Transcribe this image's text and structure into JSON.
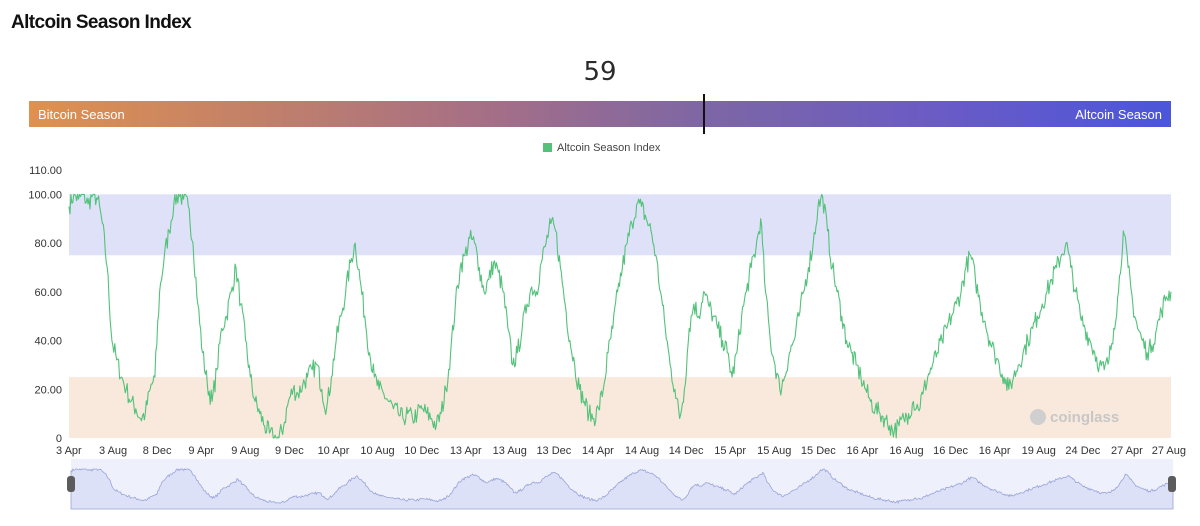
{
  "page": {
    "title": "Altcoin Season Index"
  },
  "gauge": {
    "value": "59",
    "left_label": "Bitcoin Season",
    "right_label": "Altcoin Season",
    "colors": {
      "start": "#e0914d",
      "end": "#4b56da"
    }
  },
  "watermark": {
    "text": "coinglass"
  },
  "chart_data": {
    "type": "line",
    "title": "",
    "legend": [
      {
        "name": "Altcoin Season Index",
        "color": "#52c27a"
      }
    ],
    "legend_position": "top-center",
    "ylim": [
      0,
      110
    ],
    "y_ticks": [
      "0",
      "20.00",
      "40.00",
      "60.00",
      "80.00",
      "100.00",
      "110.00"
    ],
    "x_ticks": [
      "3 Apr",
      "3 Aug",
      "8 Dec",
      "9 Apr",
      "9 Aug",
      "9 Dec",
      "10 Apr",
      "10 Aug",
      "10 Dec",
      "13 Apr",
      "13 Aug",
      "13 Dec",
      "14 Apr",
      "14 Aug",
      "14 Dec",
      "15 Apr",
      "15 Aug",
      "15 Dec",
      "16 Apr",
      "16 Aug",
      "16 Dec",
      "16 Apr",
      "19 Aug",
      "24 Dec",
      "27 Apr",
      "27 Aug"
    ],
    "bands": [
      {
        "name": "Altcoin Season zone",
        "from": 75,
        "to": 100,
        "color": "#dfe1f8"
      },
      {
        "name": "Bitcoin Season zone",
        "from": 0,
        "to": 25,
        "color": "#f9e8dc"
      }
    ],
    "series": [
      {
        "name": "Altcoin Season Index",
        "values": [
          95,
          100,
          98,
          100,
          96,
          100,
          98,
          88,
          70,
          40,
          32,
          25,
          20,
          15,
          12,
          8,
          10,
          20,
          25,
          60,
          75,
          85,
          97,
          100,
          98,
          95,
          80,
          55,
          35,
          22,
          15,
          28,
          45,
          50,
          60,
          70,
          55,
          40,
          25,
          15,
          10,
          5,
          2,
          0,
          0,
          5,
          15,
          20,
          18,
          22,
          25,
          28,
          30,
          20,
          12,
          25,
          40,
          50,
          60,
          72,
          80,
          65,
          50,
          35,
          25,
          20,
          18,
          15,
          12,
          10,
          8,
          10,
          8,
          10,
          12,
          10,
          8,
          5,
          10,
          20,
          35,
          55,
          70,
          75,
          82,
          80,
          70,
          60,
          65,
          72,
          68,
          60,
          45,
          30,
          35,
          45,
          55,
          62,
          60,
          72,
          80,
          88,
          85,
          70,
          55,
          40,
          30,
          20,
          15,
          10,
          8,
          12,
          20,
          35,
          45,
          60,
          70,
          80,
          88,
          96,
          95,
          90,
          85,
          75,
          60,
          45,
          30,
          20,
          8,
          20,
          45,
          55,
          50,
          60,
          55,
          50,
          45,
          40,
          35,
          25,
          35,
          50,
          60,
          70,
          78,
          90,
          60,
          40,
          30,
          20,
          25,
          35,
          40,
          50,
          60,
          70,
          80,
          95,
          99,
          85,
          70,
          60,
          50,
          40,
          35,
          30,
          25,
          20,
          15,
          12,
          10,
          8,
          5,
          3,
          5,
          8,
          10,
          15,
          12,
          18,
          25,
          30,
          35,
          40,
          45,
          50,
          55,
          60,
          70,
          75,
          65,
          55,
          48,
          40,
          35,
          30,
          25,
          20,
          25,
          30,
          35,
          40,
          45,
          50,
          55,
          60,
          65,
          70,
          75,
          80,
          70,
          60,
          50,
          45,
          40,
          35,
          30,
          28,
          32,
          45,
          60,
          85,
          70,
          55,
          45,
          40,
          35,
          38,
          45,
          52,
          58,
          60
        ]
      }
    ]
  },
  "range_selector": {
    "handles": [
      "start",
      "end"
    ]
  }
}
